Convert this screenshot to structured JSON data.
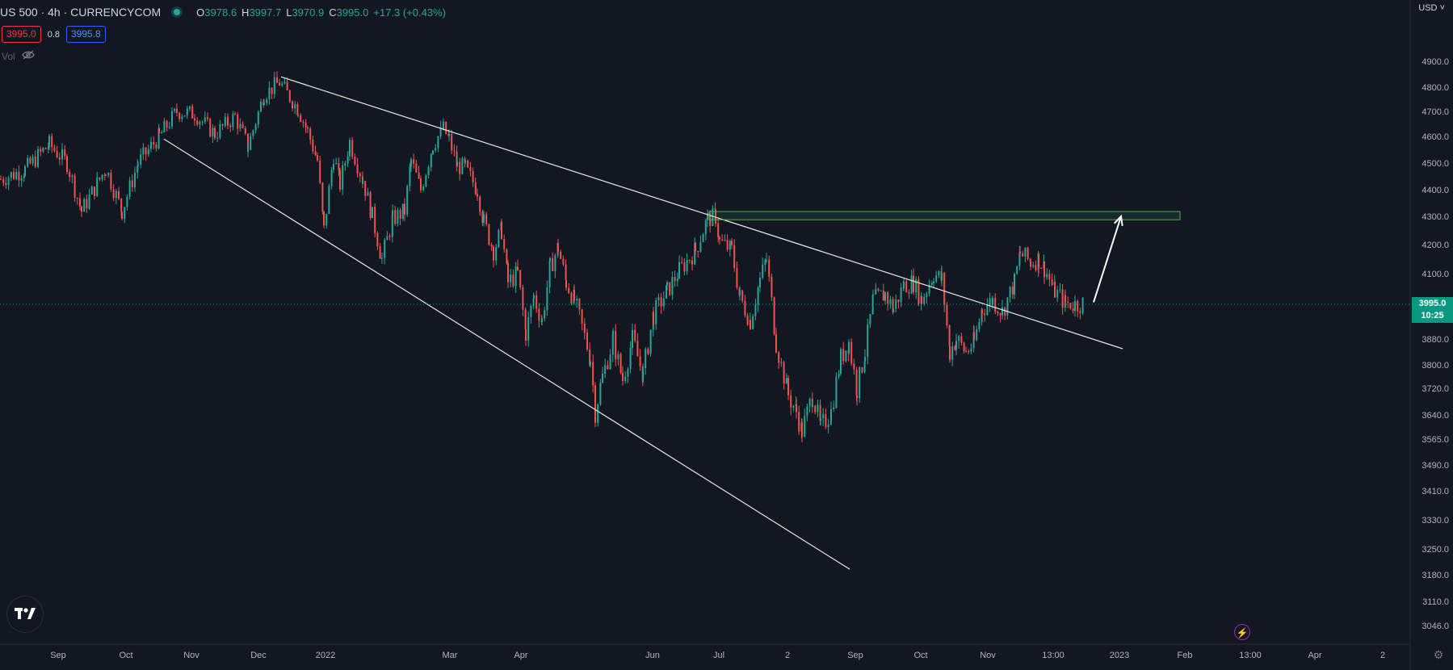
{
  "header": {
    "symbol": "US 500 · 4h · CURRENCYCOM",
    "open_label": "O",
    "open": "3978.6",
    "high_label": "H",
    "high": "3997.7",
    "low_label": "L",
    "low": "3970.9",
    "close_label": "C",
    "close": "3995.0",
    "change": "+17.3 (+0.43%)"
  },
  "quote": {
    "bid": "3995.0",
    "spread": "0.8",
    "ask": "3995.8"
  },
  "volume": {
    "label": "Vol",
    "icon": "eye-off-icon"
  },
  "currency": "USD",
  "current_price": {
    "value": "3995.0",
    "countdown": "10:25"
  },
  "colors": {
    "background": "#131722",
    "up": "#26a69a",
    "down": "#ef5350",
    "trendline": "#e8e8e8",
    "zone": "#4caf50"
  },
  "icons": {
    "logo": "tradingview-logo-icon",
    "bolt": "lightning-icon",
    "settings": "gear-icon"
  },
  "chart_data": {
    "type": "candlestick",
    "title": "US 500 · 4h · CURRENCYCOM",
    "y_ticks": [
      "4900.0",
      "4800.0",
      "4700.0",
      "4600.0",
      "4500.0",
      "4400.0",
      "4300.0",
      "4200.0",
      "4100.0",
      "3880.0",
      "3800.0",
      "3720.0",
      "3640.0",
      "3565.0",
      "3490.0",
      "3410.0",
      "3330.0",
      "3250.0",
      "3180.0",
      "3110.0",
      "3046.0"
    ],
    "x_ticks": [
      "Sep",
      "Oct",
      "Nov",
      "Dec",
      "2022",
      "Mar",
      "Apr",
      "Jun",
      "Jul",
      "2",
      "Sep",
      "Oct",
      "Nov",
      "13:00",
      "2023",
      "Feb",
      "13:00",
      "Apr",
      "2"
    ],
    "ylim": [
      3000,
      4980
    ],
    "series": [
      {
        "x": [
          0,
          30,
          60,
          82,
          100,
          130,
          150,
          170,
          196,
          218,
          240,
          265,
          290,
          306,
          326,
          345,
          368,
          380,
          392,
          400,
          412,
          420,
          432,
          448,
          460,
          472,
          485,
          500,
          508,
          520,
          535,
          548,
          555,
          565,
          575,
          590,
          598,
          610,
          620,
          628,
          640,
          650,
          660,
          670,
          680,
          690,
          700,
          710,
          730,
          736,
          745,
          758,
          770,
          782,
          795,
          808,
          825,
          840,
          860,
          875,
          885,
          890,
          905,
          915,
          928,
          940,
          948,
          960,
          975,
          985,
          992,
          1005,
          1015,
          1028,
          1040,
          1050,
          1060,
          1070,
          1080,
          1095,
          1105,
          1118,
          1130,
          1140,
          1155,
          1165,
          1175,
          1183,
          1195,
          1205,
          1215,
          1228,
          1240,
          1255,
          1262,
          1275,
          1285,
          1292,
          1305,
          1318,
          1330,
          1342
        ],
        "values": [
          4440,
          4475,
          4570,
          4500,
          4320,
          4480,
          4320,
          4500,
          4600,
          4700,
          4690,
          4610,
          4680,
          4560,
          4770,
          4820,
          4710,
          4620,
          4510,
          4250,
          4530,
          4420,
          4580,
          4440,
          4300,
          4150,
          4290,
          4320,
          4510,
          4400,
          4570,
          4630,
          4590,
          4490,
          4480,
          4400,
          4280,
          4180,
          4250,
          4070,
          4100,
          3900,
          4020,
          3940,
          4120,
          4190,
          4070,
          4010,
          3820,
          3650,
          3760,
          3880,
          3750,
          3880,
          3770,
          3960,
          4040,
          4110,
          4180,
          4290,
          4300,
          4210,
          4180,
          4020,
          3940,
          4080,
          4150,
          3870,
          3700,
          3650,
          3590,
          3700,
          3600,
          3650,
          3820,
          3870,
          3720,
          3840,
          4010,
          4030,
          3980,
          4060,
          4070,
          4010,
          4100,
          4080,
          3840,
          3880,
          3840,
          3870,
          3980,
          4010,
          3970,
          4070,
          4170,
          4140,
          4150,
          4120,
          4040,
          4000,
          3995,
          4000
        ],
        "name": ""
      }
    ],
    "annotations": {
      "upper_trendline": [
        [
          348,
          4840
        ],
        [
          1390,
          3850
        ]
      ],
      "lower_trendline": [
        [
          203,
          4590
        ],
        [
          1052,
          3195
        ]
      ],
      "resistance_zone": {
        "x": [
          878,
          1461
        ],
        "y": [
          4288,
          4318
        ]
      },
      "projection_arrow": [
        [
          1354,
          4002
        ],
        [
          1388,
          4300
        ]
      ]
    }
  }
}
